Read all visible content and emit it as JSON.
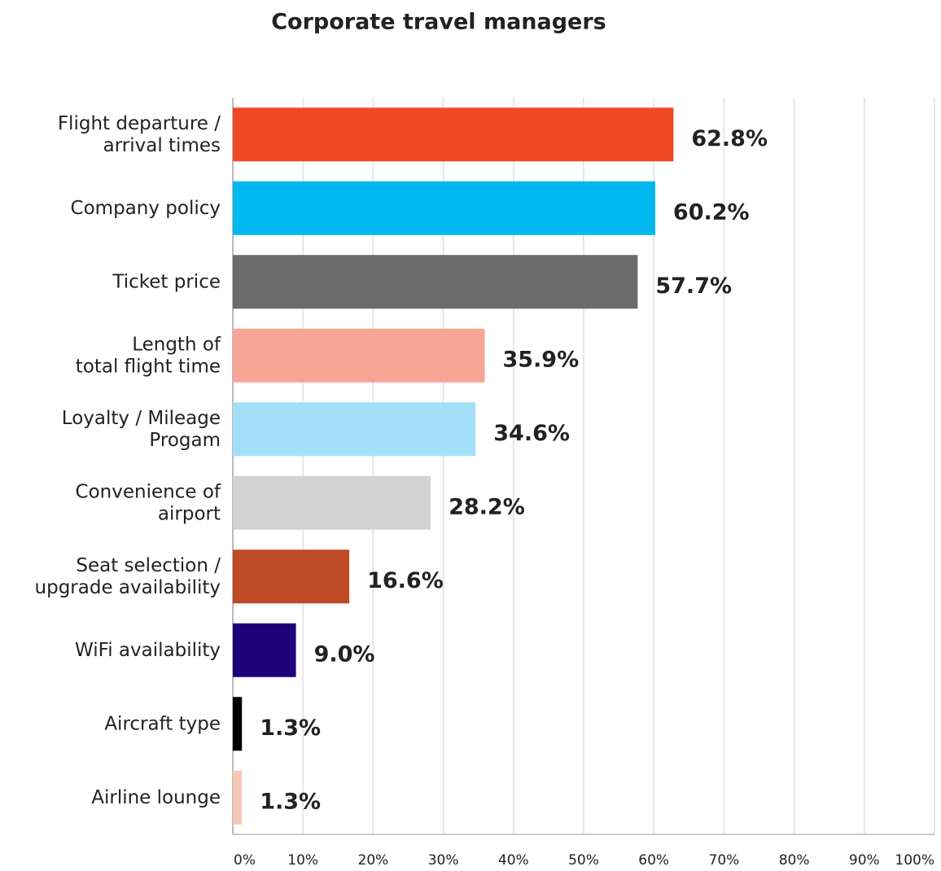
{
  "chart_data": {
    "type": "bar",
    "orientation": "horizontal",
    "title": "Corporate travel managers",
    "categories": [
      "Flight departure /\narrival times",
      "Company policy",
      "Ticket price",
      "Length of\ntotal flight time",
      "Loyalty / Mileage\nProgam",
      "Convenience of\nairport",
      "Seat selection /\nupgrade availability",
      "WiFi availability",
      "Aircraft type",
      "Airline lounge"
    ],
    "values": [
      62.8,
      60.2,
      57.7,
      35.9,
      34.6,
      28.2,
      16.6,
      9.0,
      1.3,
      1.3
    ],
    "value_labels": [
      "62.8%",
      "60.2%",
      "57.7%",
      "35.9%",
      "34.6%",
      "28.2%",
      "16.6%",
      "9.0%",
      "1.3%",
      "1.3%"
    ],
    "colors": [
      "#ef4923",
      "#00b8f0",
      "#6b6b6b",
      "#f6a596",
      "#a3e0f7",
      "#d3d3d3",
      "#c04a27",
      "#1f0078",
      "#000000",
      "#f6c9b7"
    ],
    "xlim": [
      0,
      100
    ],
    "xticks": [
      {
        "value": 0,
        "label": "0%"
      },
      {
        "value": 10,
        "label": "10%"
      },
      {
        "value": 20,
        "label": "20%"
      },
      {
        "value": 30,
        "label": "30%"
      },
      {
        "value": 40,
        "label": "40%"
      },
      {
        "value": 50,
        "label": "50%"
      },
      {
        "value": 60,
        "label": "60%"
      },
      {
        "value": 70,
        "label": "70%"
      },
      {
        "value": 80,
        "label": "80%"
      },
      {
        "value": 90,
        "label": "90%"
      },
      {
        "value": 100,
        "label": "100%"
      }
    ],
    "grid": true
  }
}
